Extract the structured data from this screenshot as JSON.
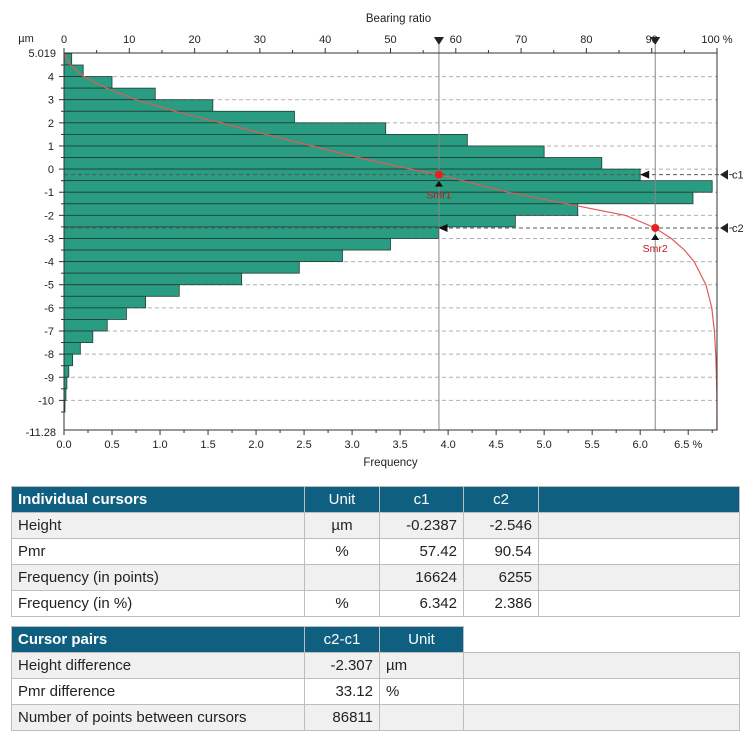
{
  "chart_data": {
    "type": "bar",
    "orientation": "horizontal",
    "title": "",
    "top_axis": {
      "label": "Bearing ratio",
      "range": [
        0,
        100
      ],
      "ticks": [
        "0",
        "10",
        "20",
        "30",
        "40",
        "50",
        "60",
        "70",
        "80",
        "90",
        "100 %"
      ]
    },
    "bottom_axis": {
      "label": "Frequency",
      "range": [
        0,
        6.8
      ],
      "ticks": [
        "0.0",
        "0.5",
        "1.0",
        "1.5",
        "2.0",
        "2.5",
        "3.0",
        "3.5",
        "4.0",
        "4.5",
        "5.0",
        "5.5",
        "6.0",
        "6.5 %"
      ]
    },
    "left_axis": {
      "unit": "µm",
      "range": [
        -11.28,
        5.019
      ],
      "top_label": "5.019",
      "bottom_label": "-11.28",
      "ticks": [
        "4",
        "3",
        "2",
        "1",
        "0",
        "-1",
        "-2",
        "-3",
        "-4",
        "-5",
        "-6",
        "-7",
        "-8",
        "-9",
        "-10"
      ]
    },
    "grid": "horizontal dashed",
    "histogram": {
      "bin_height": 0.5,
      "bins": [
        {
          "center": 4.75,
          "value": 0.08
        },
        {
          "center": 4.25,
          "value": 0.2
        },
        {
          "center": 3.75,
          "value": 0.5
        },
        {
          "center": 3.25,
          "value": 0.95
        },
        {
          "center": 2.75,
          "value": 1.55
        },
        {
          "center": 2.25,
          "value": 2.4
        },
        {
          "center": 1.75,
          "value": 3.35
        },
        {
          "center": 1.25,
          "value": 4.2
        },
        {
          "center": 0.75,
          "value": 5.0
        },
        {
          "center": 0.25,
          "value": 5.6
        },
        {
          "center": -0.25,
          "value": 6.0
        },
        {
          "center": -0.75,
          "value": 6.75
        },
        {
          "center": -1.25,
          "value": 6.55
        },
        {
          "center": -1.75,
          "value": 5.35
        },
        {
          "center": -2.25,
          "value": 4.7
        },
        {
          "center": -2.75,
          "value": 3.9
        },
        {
          "center": -3.25,
          "value": 3.4
        },
        {
          "center": -3.75,
          "value": 2.9
        },
        {
          "center": -4.25,
          "value": 2.45
        },
        {
          "center": -4.75,
          "value": 1.85
        },
        {
          "center": -5.25,
          "value": 1.2
        },
        {
          "center": -5.75,
          "value": 0.85
        },
        {
          "center": -6.25,
          "value": 0.65
        },
        {
          "center": -6.75,
          "value": 0.45
        },
        {
          "center": -7.25,
          "value": 0.3
        },
        {
          "center": -7.75,
          "value": 0.17
        },
        {
          "center": -8.25,
          "value": 0.09
        },
        {
          "center": -8.75,
          "value": 0.05
        },
        {
          "center": -9.25,
          "value": 0.03
        },
        {
          "center": -9.75,
          "value": 0.02
        },
        {
          "center": -10.25,
          "value": 0.01
        }
      ]
    },
    "bearing_curve": [
      {
        "height": 5.019,
        "ratio": 0
      },
      {
        "height": 4.8,
        "ratio": 0.3
      },
      {
        "height": 4.5,
        "ratio": 1.0
      },
      {
        "height": 4.0,
        "ratio": 3.0
      },
      {
        "height": 3.5,
        "ratio": 6.5
      },
      {
        "height": 3.0,
        "ratio": 11.0
      },
      {
        "height": 2.5,
        "ratio": 17.0
      },
      {
        "height": 2.0,
        "ratio": 24.0
      },
      {
        "height": 1.5,
        "ratio": 31.0
      },
      {
        "height": 1.0,
        "ratio": 38.0
      },
      {
        "height": 0.5,
        "ratio": 45.0
      },
      {
        "height": 0.0,
        "ratio": 53.0
      },
      {
        "height": -0.2387,
        "ratio": 57.42
      },
      {
        "height": -0.5,
        "ratio": 61.0
      },
      {
        "height": -1.0,
        "ratio": 68.0
      },
      {
        "height": -1.5,
        "ratio": 77.0
      },
      {
        "height": -2.0,
        "ratio": 86.0
      },
      {
        "height": -2.546,
        "ratio": 90.54
      },
      {
        "height": -3.0,
        "ratio": 93.0
      },
      {
        "height": -3.5,
        "ratio": 95.0
      },
      {
        "height": -4.0,
        "ratio": 96.5
      },
      {
        "height": -5.0,
        "ratio": 98.3
      },
      {
        "height": -6.0,
        "ratio": 99.2
      },
      {
        "height": -7.0,
        "ratio": 99.6
      },
      {
        "height": -8.0,
        "ratio": 99.8
      },
      {
        "height": -9.0,
        "ratio": 99.93
      },
      {
        "height": -10.0,
        "ratio": 99.98
      },
      {
        "height": -11.28,
        "ratio": 100
      }
    ],
    "markers": [
      {
        "label": "Smr1",
        "height": -0.2387,
        "ratio": 57.42,
        "cursor": "c1"
      },
      {
        "label": "Smr2",
        "height": -2.546,
        "ratio": 90.54,
        "cursor": "c2"
      }
    ],
    "colors": {
      "bar_fill": "#2a9c82",
      "bar_stroke": "#1f3b34",
      "curve": "#e05a5a",
      "marker": "#e8201c",
      "grid": "#b0b0b0",
      "cursor_line": "#888888"
    }
  },
  "individual_table": {
    "title": "Individual cursors",
    "col_unit": "Unit",
    "col_c1": "c1",
    "col_c2": "c2",
    "rows": [
      {
        "label": "Height",
        "unit": "µm",
        "c1": "-0.2387",
        "c2": "-2.546"
      },
      {
        "label": "Pmr",
        "unit": "%",
        "c1": "57.42",
        "c2": "90.54"
      },
      {
        "label": "Frequency (in points)",
        "unit": "",
        "c1": "16624",
        "c2": "6255"
      },
      {
        "label": "Frequency (in %)",
        "unit": "%",
        "c1": "6.342",
        "c2": "2.386"
      }
    ]
  },
  "pairs_table": {
    "title": "Cursor pairs",
    "col_value": "c2-c1",
    "col_unit": "Unit",
    "rows": [
      {
        "label": "Height difference",
        "value": "-2.307",
        "unit": "µm"
      },
      {
        "label": "Pmr difference",
        "value": "33.12",
        "unit": "%"
      },
      {
        "label": "Number of points between cursors",
        "value": "86811",
        "unit": ""
      }
    ]
  }
}
